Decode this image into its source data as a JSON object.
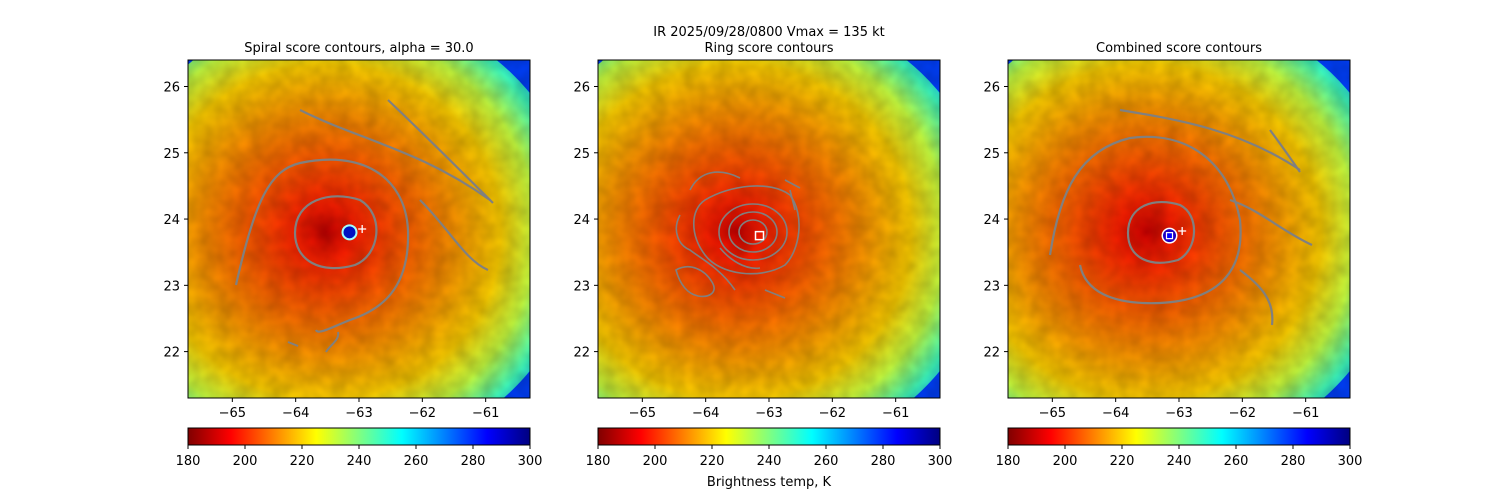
{
  "figure": {
    "suptitle_line1": "IR  2025/09/28/0800    Vmax = 135 kt",
    "colorbar_label": "Brightness temp, K"
  },
  "colorbar": {
    "min": 180,
    "max": 300,
    "ticks": [
      180,
      200,
      220,
      240,
      260,
      280,
      300
    ],
    "colormap": [
      "#800000",
      "#ff0000",
      "#ff8000",
      "#ffff00",
      "#80ff80",
      "#00ffff",
      "#0080ff",
      "#0000ff",
      "#000080"
    ]
  },
  "chart_data": [
    {
      "type": "heatmap",
      "title": "Spiral score contours, alpha = 30.0",
      "xlabel": "",
      "ylabel": "",
      "xlim": [
        -65.7,
        -60.3
      ],
      "ylim": [
        21.3,
        26.4
      ],
      "xticks": [
        -65,
        -64,
        -63,
        -62,
        -61
      ],
      "yticks": [
        22,
        23,
        24,
        25,
        26
      ],
      "center_marker": {
        "lon": -63.15,
        "lat": 23.8,
        "shape": "blue-dot"
      },
      "plus_marker": {
        "lon": -62.95,
        "lat": 23.85,
        "shape": "white-plus"
      },
      "colorbar_ticks": [
        180,
        200,
        220,
        240,
        260,
        280,
        300
      ]
    },
    {
      "type": "heatmap",
      "title": "Ring score contours",
      "xlabel": "",
      "ylabel": "",
      "xlim": [
        -65.7,
        -60.3
      ],
      "ylim": [
        21.3,
        26.4
      ],
      "xticks": [
        -65,
        -64,
        -63,
        -62,
        -61
      ],
      "yticks": [
        22,
        23,
        24,
        25,
        26
      ],
      "center_marker": {
        "lon": -63.15,
        "lat": 23.75,
        "shape": "white-square"
      },
      "colorbar_ticks": [
        180,
        200,
        220,
        240,
        260,
        280,
        300
      ]
    },
    {
      "type": "heatmap",
      "title": "Combined score contours",
      "xlabel": "",
      "ylabel": "",
      "xlim": [
        -65.7,
        -60.3
      ],
      "ylim": [
        21.3,
        26.4
      ],
      "xticks": [
        -65,
        -64,
        -63,
        -62,
        -61
      ],
      "yticks": [
        22,
        23,
        24,
        25,
        26
      ],
      "center_marker": {
        "lon": -63.15,
        "lat": 23.75,
        "shape": "blue-dot-square"
      },
      "plus_marker": {
        "lon": -62.95,
        "lat": 23.82,
        "shape": "white-plus"
      },
      "colorbar_ticks": [
        180,
        200,
        220,
        240,
        260,
        280,
        300
      ]
    }
  ]
}
